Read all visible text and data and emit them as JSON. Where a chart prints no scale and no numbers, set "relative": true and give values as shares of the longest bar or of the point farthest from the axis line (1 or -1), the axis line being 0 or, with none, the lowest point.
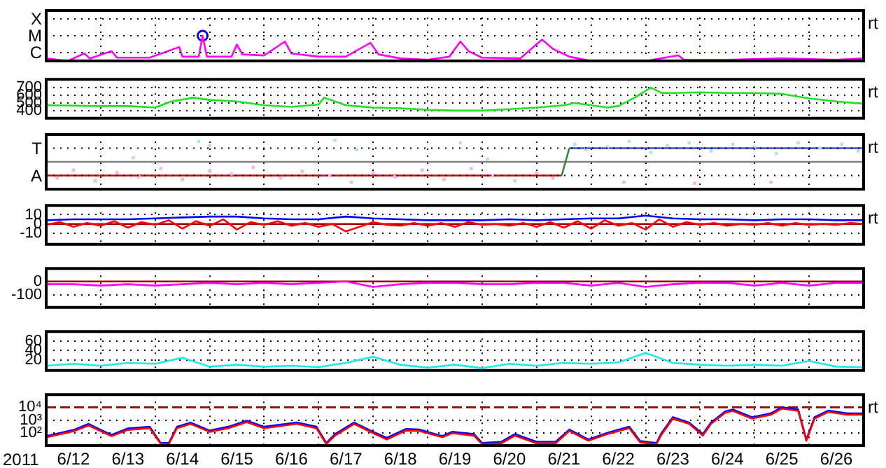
{
  "chart_data": [
    {
      "type": "line",
      "relative": true,
      "grid": true,
      "marker": "none",
      "tick_labels": "y",
      "annotations": [
        "rt",
        "X",
        "M",
        "C"
      ],
      "xlim": [
        "2011-06-12T00:00",
        "2011-06-27T00:00"
      ],
      "xticks": [
        {
          "value": "2011-06-13T00:00",
          "label": null
        },
        {
          "value": "2011-06-14T00:00",
          "label": null
        },
        {
          "value": "2011-06-15T00:00",
          "label": null
        },
        {
          "value": "2011-06-16T00:00",
          "label": null
        },
        {
          "value": "2011-06-17T00:00",
          "label": null
        },
        {
          "value": "2011-06-18T00:00",
          "label": null
        },
        {
          "value": "2011-06-19T00:00",
          "label": null
        },
        {
          "value": "2011-06-20T00:00",
          "label": null
        },
        {
          "value": "2011-06-21T00:00",
          "label": null
        },
        {
          "value": "2011-06-22T00:00",
          "label": null
        },
        {
          "value": "2011-06-23T00:00",
          "label": null
        },
        {
          "value": "2011-06-24T00:00",
          "label": null
        },
        {
          "value": "2011-06-25T00:00",
          "label": null
        },
        {
          "value": "2011-06-26T00:00",
          "label": null
        }
      ],
      "series": [
        {
          "color": "#ff00ff",
          "x": [
            "2011-06-12T00:00",
            "2011-06-12T09:36",
            "2011-06-12T16:48",
            "2011-06-12T19:12",
            "2011-06-13T04:48",
            "2011-06-13T07:12",
            "2011-06-13T21:36",
            "2011-06-14T10:34",
            "2011-06-14T12:00",
            "2011-06-14T19:12",
            "2011-06-14T20:53",
            "2011-06-14T22:48",
            "2011-06-15T09:36",
            "2011-06-15T12:00",
            "2011-06-15T14:24",
            "2011-06-16T00:00",
            "2011-06-16T09:07",
            "2011-06-16T12:00",
            "2011-06-17T00:00",
            "2011-06-17T12:00",
            "2011-06-17T22:48",
            "2011-06-18T02:24",
            "2011-06-18T12:00",
            "2011-06-19T00:00",
            "2011-06-19T09:36",
            "2011-06-19T14:24",
            "2011-06-19T18:00",
            "2011-06-20T00:00",
            "2011-06-20T16:48",
            "2011-06-21T02:24",
            "2011-06-21T07:12",
            "2011-06-21T14:24",
            "2011-06-22T00:00",
            "2011-06-23T00:00",
            "2011-06-23T14:24",
            "2011-06-23T16:48",
            "2011-06-24T12:00",
            "2011-06-25T12:00",
            "2011-06-26T12:00",
            "2011-06-27T00:00"
          ],
          "values": [
            0.1,
            0,
            0.3,
            0.1,
            0.39,
            0.13,
            0.13,
            0.55,
            0.17,
            0.17,
            1,
            0.17,
            0.17,
            0.65,
            0.26,
            0.22,
            0.77,
            0.3,
            0.17,
            0.17,
            0.72,
            0.26,
            0.1,
            0.05,
            0.17,
            0.77,
            0.39,
            0.13,
            0.1,
            0.85,
            0.48,
            0.17,
            0,
            0,
            0.22,
            0.05,
            0.05,
            0.1,
            0.05,
            0.1
          ]
        },
        {
          "type": "scatter",
          "marker": "circle",
          "color": "#0000ff",
          "x": [
            "2011-06-14T20:53"
          ],
          "values": [
            1
          ]
        }
      ]
    },
    {
      "type": "line",
      "grid": true,
      "marker": "none",
      "tick_labels": "y",
      "annotations": [
        "rt"
      ],
      "xlim": [
        "2011-06-12T00:00",
        "2011-06-27T00:00"
      ],
      "ylim": [
        300,
        810
      ],
      "yticks": [
        400,
        500,
        600,
        700
      ],
      "xticks": [
        {
          "value": "2011-06-13T00:00",
          "label": null
        },
        {
          "value": "2011-06-14T00:00",
          "label": null
        },
        {
          "value": "2011-06-15T00:00",
          "label": null
        },
        {
          "value": "2011-06-16T00:00",
          "label": null
        },
        {
          "value": "2011-06-17T00:00",
          "label": null
        },
        {
          "value": "2011-06-18T00:00",
          "label": null
        },
        {
          "value": "2011-06-19T00:00",
          "label": null
        },
        {
          "value": "2011-06-20T00:00",
          "label": null
        },
        {
          "value": "2011-06-21T00:00",
          "label": null
        },
        {
          "value": "2011-06-22T00:00",
          "label": null
        },
        {
          "value": "2011-06-23T00:00",
          "label": null
        },
        {
          "value": "2011-06-24T00:00",
          "label": null
        },
        {
          "value": "2011-06-25T00:00",
          "label": null
        },
        {
          "value": "2011-06-26T00:00",
          "label": null
        }
      ],
      "series": [
        {
          "color": "#22e022",
          "x": [
            "2011-06-12T00:00",
            "2011-06-13T00:00",
            "2011-06-13T12:00",
            "2011-06-14T00:00",
            "2011-06-14T07:12",
            "2011-06-14T16:48",
            "2011-06-15T00:00",
            "2011-06-15T12:00",
            "2011-06-16T00:00",
            "2011-06-16T12:00",
            "2011-06-17T00:00",
            "2011-06-17T02:24",
            "2011-06-17T07:12",
            "2011-06-17T12:00",
            "2011-06-18T00:00",
            "2011-06-18T12:00",
            "2011-06-19T00:00",
            "2011-06-19T12:00",
            "2011-06-20T00:00",
            "2011-06-20T12:00",
            "2011-06-21T00:00",
            "2011-06-21T12:00",
            "2011-06-21T16:48",
            "2011-06-22T00:00",
            "2011-06-22T07:12",
            "2011-06-22T12:00",
            "2011-06-22T19:12",
            "2011-06-23T00:00",
            "2011-06-23T02:24",
            "2011-06-23T07:12",
            "2011-06-23T12:00",
            "2011-06-24T00:00",
            "2011-06-24T12:00",
            "2011-06-25T00:00",
            "2011-06-25T12:00",
            "2011-06-26T00:00",
            "2011-06-26T12:00",
            "2011-06-27T00:00"
          ],
          "values": [
            470,
            460,
            460,
            440,
            520,
            570,
            540,
            520,
            470,
            450,
            480,
            570,
            520,
            470,
            440,
            430,
            410,
            400,
            400,
            420,
            440,
            470,
            500,
            470,
            440,
            460,
            570,
            660,
            700,
            630,
            630,
            640,
            630,
            630,
            620,
            560,
            520,
            490
          ]
        }
      ]
    },
    {
      "type": "scatter",
      "relative": true,
      "grid": true,
      "marker": "square",
      "tick_labels": "y",
      "annotations": [
        "rt",
        "T",
        "A"
      ],
      "xlim": [
        "2011-06-12T00:00",
        "2011-06-27T00:00"
      ],
      "ref_lines": [
        {
          "axis": "y",
          "value": 0,
          "color": "#808080"
        }
      ],
      "xticks": [
        {
          "value": "2011-06-13T00:00",
          "label": null
        },
        {
          "value": "2011-06-14T00:00",
          "label": null
        },
        {
          "value": "2011-06-15T00:00",
          "label": null
        },
        {
          "value": "2011-06-16T00:00",
          "label": null
        },
        {
          "value": "2011-06-17T00:00",
          "label": null
        },
        {
          "value": "2011-06-18T00:00",
          "label": null
        },
        {
          "value": "2011-06-19T00:00",
          "label": null
        },
        {
          "value": "2011-06-20T00:00",
          "label": null
        },
        {
          "value": "2011-06-21T00:00",
          "label": null
        },
        {
          "value": "2011-06-22T00:00",
          "label": null
        },
        {
          "value": "2011-06-23T00:00",
          "label": null
        },
        {
          "value": "2011-06-24T00:00",
          "label": null
        },
        {
          "value": "2011-06-25T00:00",
          "label": null
        },
        {
          "value": "2011-06-26T00:00",
          "label": null
        }
      ],
      "series": [
        {
          "color": "#f6b4ee",
          "x": [
            "2011-06-12T04:48",
            "2011-06-12T12:00",
            "2011-06-12T21:36",
            "2011-06-13T07:12",
            "2011-06-13T16:48",
            "2011-06-14T02:24",
            "2011-06-14T12:00",
            "2011-06-15T00:00",
            "2011-06-15T09:36",
            "2011-06-15T19:12",
            "2011-06-16T07:12",
            "2011-06-16T16:48",
            "2011-06-17T04:48",
            "2011-06-17T14:24",
            "2011-06-18T00:00",
            "2011-06-18T09:36",
            "2011-06-18T21:36",
            "2011-06-19T07:12",
            "2011-06-19T19:12",
            "2011-06-20T04:48",
            "2011-06-20T14:24",
            "2011-06-21T00:00",
            "2011-06-21T07:12",
            "2011-06-22T14:24",
            "2011-06-23T21:36",
            "2011-06-25T07:12"
          ],
          "values": [
            -0.75,
            -0.38,
            -0.88,
            -0.5,
            -0.69,
            -0.31,
            -0.81,
            -0.44,
            -0.56,
            -0.25,
            -0.75,
            -0.44,
            -0.63,
            -0.94,
            -0.5,
            -0.69,
            -0.38,
            -0.81,
            -0.31,
            -0.63,
            -0.88,
            -0.5,
            -0.75,
            -0.94,
            -1,
            -0.94
          ]
        },
        {
          "color": "#b0e0f8",
          "x": [
            "2011-06-13T14:24",
            "2011-06-14T19:12",
            "2011-06-15T00:00",
            "2011-06-17T07:12",
            "2011-06-17T16:48",
            "2011-06-19T14:24",
            "2011-06-20T02:24",
            "2011-06-21T16:48",
            "2011-06-21T21:36",
            "2011-06-22T07:12",
            "2011-06-22T16:48",
            "2011-06-23T02:24",
            "2011-06-23T09:36",
            "2011-06-23T19:12",
            "2011-06-24T04:48",
            "2011-06-24T14:24",
            "2011-06-25T00:00",
            "2011-06-25T09:36",
            "2011-06-25T19:12",
            "2011-06-26T04:48",
            "2011-06-26T14:24",
            "2011-06-26T21:36"
          ],
          "values": [
            0.19,
            0.94,
            0.75,
            1,
            0.56,
            0.88,
            0.13,
            0.81,
            0.56,
            0.69,
            0.94,
            0.44,
            0.75,
            0.88,
            0.5,
            0.81,
            0.69,
            0.38,
            0.88,
            0.63,
            0.81,
            0.5
          ]
        },
        {
          "type": "line",
          "marker": "none",
          "color": "#cc0000",
          "x": [
            "2011-06-12T00:00",
            "2011-06-21T11:02"
          ],
          "values": [
            -0.63,
            -0.63
          ]
        },
        {
          "type": "line",
          "marker": "none",
          "color": "#408040",
          "x": [
            "2011-06-21T11:02",
            "2011-06-21T14:24"
          ],
          "values": [
            -0.63,
            0.63
          ]
        },
        {
          "type": "line",
          "marker": "none",
          "color": "#3050d0",
          "x": [
            "2011-06-21T14:24",
            "2011-06-27T00:00"
          ],
          "values": [
            0.63,
            0.63
          ]
        }
      ]
    },
    {
      "type": "line",
      "grid": true,
      "marker": "none",
      "tick_labels": "y",
      "annotations": [
        "rt"
      ],
      "xlim": [
        "2011-06-12T00:00",
        "2011-06-27T00:00"
      ],
      "ylim": [
        -22,
        20
      ],
      "yticks": [
        -10,
        0,
        10
      ],
      "ref_lines": [
        {
          "axis": "y",
          "value": 0,
          "color": "#990000"
        }
      ],
      "xticks": [
        {
          "value": "2011-06-13T00:00",
          "label": null
        },
        {
          "value": "2011-06-14T00:00",
          "label": null
        },
        {
          "value": "2011-06-15T00:00",
          "label": null
        },
        {
          "value": "2011-06-16T00:00",
          "label": null
        },
        {
          "value": "2011-06-17T00:00",
          "label": null
        },
        {
          "value": "2011-06-18T00:00",
          "label": null
        },
        {
          "value": "2011-06-19T00:00",
          "label": null
        },
        {
          "value": "2011-06-20T00:00",
          "label": null
        },
        {
          "value": "2011-06-21T00:00",
          "label": null
        },
        {
          "value": "2011-06-22T00:00",
          "label": null
        },
        {
          "value": "2011-06-23T00:00",
          "label": null
        },
        {
          "value": "2011-06-24T00:00",
          "label": null
        },
        {
          "value": "2011-06-25T00:00",
          "label": null
        },
        {
          "value": "2011-06-26T00:00",
          "label": null
        }
      ],
      "series": [
        {
          "color": "#ff0000",
          "x": [
            "2011-06-12T00:00",
            "2011-06-12T06:00",
            "2011-06-12T12:00",
            "2011-06-12T18:00",
            "2011-06-13T00:00",
            "2011-06-13T06:00",
            "2011-06-13T12:00",
            "2011-06-13T18:00",
            "2011-06-14T00:00",
            "2011-06-14T06:00",
            "2011-06-14T12:00",
            "2011-06-14T18:00",
            "2011-06-15T00:00",
            "2011-06-15T06:00",
            "2011-06-15T12:00",
            "2011-06-15T18:00",
            "2011-06-16T00:00",
            "2011-06-16T06:00",
            "2011-06-16T12:00",
            "2011-06-16T18:00",
            "2011-06-17T00:00",
            "2011-06-17T06:00",
            "2011-06-17T12:00",
            "2011-06-17T18:00",
            "2011-06-18T00:00",
            "2011-06-18T06:00",
            "2011-06-18T12:00",
            "2011-06-18T18:00",
            "2011-06-19T00:00",
            "2011-06-19T06:00",
            "2011-06-19T12:00",
            "2011-06-19T18:00",
            "2011-06-20T00:00",
            "2011-06-20T06:00",
            "2011-06-20T12:00",
            "2011-06-20T18:00",
            "2011-06-21T00:00",
            "2011-06-21T06:00",
            "2011-06-21T12:00",
            "2011-06-21T18:00",
            "2011-06-22T00:00",
            "2011-06-22T06:00",
            "2011-06-22T12:00",
            "2011-06-22T18:00",
            "2011-06-23T00:00",
            "2011-06-23T06:00",
            "2011-06-23T12:00",
            "2011-06-23T18:00",
            "2011-06-24T00:00",
            "2011-06-24T06:00",
            "2011-06-24T12:00",
            "2011-06-24T18:00",
            "2011-06-25T00:00",
            "2011-06-25T06:00",
            "2011-06-25T12:00",
            "2011-06-25T18:00",
            "2011-06-26T00:00",
            "2011-06-26T06:00",
            "2011-06-26T12:00",
            "2011-06-26T18:00",
            "2011-06-27T00:00"
          ],
          "values": [
            -1,
            2,
            -3,
            1,
            -2,
            3,
            -4,
            2,
            -1,
            4,
            -5,
            3,
            -2,
            5,
            -6,
            2,
            -1,
            3,
            -2,
            1,
            -3,
            0,
            -8,
            -3,
            2,
            -1,
            -2,
            1,
            -2,
            1,
            -3,
            2,
            -1,
            0,
            -2,
            1,
            -3,
            2,
            -4,
            3,
            -5,
            4,
            -2,
            1,
            -6,
            5,
            -3,
            2,
            -1,
            1,
            -2,
            0,
            -1,
            1,
            -2,
            1,
            -1,
            0,
            -1,
            1,
            0
          ]
        },
        {
          "color": "#0000ff",
          "x": [
            "2011-06-12T00:00",
            "2011-06-12T12:00",
            "2011-06-13T00:00",
            "2011-06-13T12:00",
            "2011-06-14T00:00",
            "2011-06-14T12:00",
            "2011-06-15T00:00",
            "2011-06-15T12:00",
            "2011-06-16T00:00",
            "2011-06-16T12:00",
            "2011-06-17T00:00",
            "2011-06-17T12:00",
            "2011-06-18T00:00",
            "2011-06-18T12:00",
            "2011-06-19T00:00",
            "2011-06-19T12:00",
            "2011-06-20T00:00",
            "2011-06-20T12:00",
            "2011-06-21T00:00",
            "2011-06-21T12:00",
            "2011-06-22T00:00",
            "2011-06-22T12:00",
            "2011-06-23T00:00",
            "2011-06-23T12:00",
            "2011-06-24T00:00",
            "2011-06-24T12:00",
            "2011-06-25T00:00",
            "2011-06-25T12:00",
            "2011-06-26T00:00",
            "2011-06-26T12:00",
            "2011-06-27T00:00"
          ],
          "values": [
            4,
            5,
            5,
            5,
            6,
            7,
            8,
            8,
            6,
            5,
            5,
            8,
            6,
            5,
            4,
            4,
            4,
            5,
            4,
            5,
            6,
            6,
            9,
            6,
            5,
            5,
            4,
            5,
            5,
            4,
            4
          ]
        }
      ]
    },
    {
      "type": "line",
      "grid": true,
      "marker": "none",
      "tick_labels": "y",
      "xlim": [
        "2011-06-12T00:00",
        "2011-06-27T00:00"
      ],
      "ylim": [
        -190,
        95
      ],
      "yticks": [
        -100,
        0
      ],
      "ref_lines": [
        {
          "axis": "y",
          "value": 0,
          "color": "#990000"
        }
      ],
      "xticks": [
        {
          "value": "2011-06-13T00:00",
          "label": null
        },
        {
          "value": "2011-06-14T00:00",
          "label": null
        },
        {
          "value": "2011-06-15T00:00",
          "label": null
        },
        {
          "value": "2011-06-16T00:00",
          "label": null
        },
        {
          "value": "2011-06-17T00:00",
          "label": null
        },
        {
          "value": "2011-06-18T00:00",
          "label": null
        },
        {
          "value": "2011-06-19T00:00",
          "label": null
        },
        {
          "value": "2011-06-20T00:00",
          "label": null
        },
        {
          "value": "2011-06-21T00:00",
          "label": null
        },
        {
          "value": "2011-06-22T00:00",
          "label": null
        },
        {
          "value": "2011-06-23T00:00",
          "label": null
        },
        {
          "value": "2011-06-24T00:00",
          "label": null
        },
        {
          "value": "2011-06-25T00:00",
          "label": null
        },
        {
          "value": "2011-06-26T00:00",
          "label": null
        }
      ],
      "series": [
        {
          "color": "#ff00ff",
          "x": [
            "2011-06-12T00:00",
            "2011-06-12T12:00",
            "2011-06-13T00:00",
            "2011-06-13T12:00",
            "2011-06-14T00:00",
            "2011-06-14T12:00",
            "2011-06-15T00:00",
            "2011-06-15T12:00",
            "2011-06-16T00:00",
            "2011-06-16T12:00",
            "2011-06-17T00:00",
            "2011-06-17T12:00",
            "2011-06-18T00:00",
            "2011-06-18T12:00",
            "2011-06-19T00:00",
            "2011-06-19T12:00",
            "2011-06-20T00:00",
            "2011-06-20T12:00",
            "2011-06-21T00:00",
            "2011-06-21T12:00",
            "2011-06-22T00:00",
            "2011-06-22T12:00",
            "2011-06-23T00:00",
            "2011-06-23T12:00",
            "2011-06-24T00:00",
            "2011-06-24T12:00",
            "2011-06-25T00:00",
            "2011-06-25T12:00",
            "2011-06-26T00:00",
            "2011-06-26T12:00",
            "2011-06-27T00:00"
          ],
          "values": [
            -20,
            -20,
            -30,
            -20,
            -30,
            -20,
            -10,
            -20,
            -10,
            -20,
            -10,
            0,
            -40,
            -20,
            -10,
            -10,
            -20,
            -20,
            -10,
            -10,
            -30,
            -10,
            -40,
            -20,
            -10,
            -10,
            -30,
            -10,
            -30,
            -10,
            -10
          ]
        }
      ]
    },
    {
      "type": "line",
      "grid": true,
      "marker": "none",
      "tick_labels": "y",
      "xlim": [
        "2011-06-12T00:00",
        "2011-06-27T00:00"
      ],
      "ylim": [
        -2,
        80
      ],
      "yticks": [
        20,
        40,
        60
      ],
      "xticks": [
        {
          "value": "2011-06-13T00:00",
          "label": null
        },
        {
          "value": "2011-06-14T00:00",
          "label": null
        },
        {
          "value": "2011-06-15T00:00",
          "label": null
        },
        {
          "value": "2011-06-16T00:00",
          "label": null
        },
        {
          "value": "2011-06-17T00:00",
          "label": null
        },
        {
          "value": "2011-06-18T00:00",
          "label": null
        },
        {
          "value": "2011-06-19T00:00",
          "label": null
        },
        {
          "value": "2011-06-20T00:00",
          "label": null
        },
        {
          "value": "2011-06-21T00:00",
          "label": null
        },
        {
          "value": "2011-06-22T00:00",
          "label": null
        },
        {
          "value": "2011-06-23T00:00",
          "label": null
        },
        {
          "value": "2011-06-24T00:00",
          "label": null
        },
        {
          "value": "2011-06-25T00:00",
          "label": null
        },
        {
          "value": "2011-06-26T00:00",
          "label": null
        }
      ],
      "series": [
        {
          "color": "#20e8e8",
          "x": [
            "2011-06-12T00:00",
            "2011-06-12T12:00",
            "2011-06-13T00:00",
            "2011-06-13T12:00",
            "2011-06-14T00:00",
            "2011-06-14T12:00",
            "2011-06-15T00:00",
            "2011-06-15T12:00",
            "2011-06-16T00:00",
            "2011-06-16T12:00",
            "2011-06-17T00:00",
            "2011-06-17T12:00",
            "2011-06-18T00:00",
            "2011-06-18T12:00",
            "2011-06-19T00:00",
            "2011-06-19T12:00",
            "2011-06-20T00:00",
            "2011-06-20T12:00",
            "2011-06-21T00:00",
            "2011-06-21T12:00",
            "2011-06-22T00:00",
            "2011-06-22T12:00",
            "2011-06-23T00:00",
            "2011-06-23T12:00",
            "2011-06-24T00:00",
            "2011-06-24T12:00",
            "2011-06-25T00:00",
            "2011-06-25T12:00",
            "2011-06-26T00:00",
            "2011-06-26T12:00",
            "2011-06-27T00:00"
          ],
          "values": [
            8,
            12,
            8,
            14,
            12,
            25,
            6,
            10,
            6,
            8,
            5,
            14,
            27,
            10,
            4,
            10,
            3,
            12,
            8,
            14,
            12,
            15,
            35,
            14,
            10,
            8,
            10,
            8,
            18,
            6,
            5
          ]
        }
      ]
    },
    {
      "type": "line",
      "log": "y",
      "grid": true,
      "marker": "none",
      "xlabel": "2011",
      "annotations": [
        "rt"
      ],
      "xlim": [
        "2011-06-12T00:00",
        "2011-06-27T00:00"
      ],
      "ylim": [
        10,
        100000
      ],
      "yticks": [
        {
          "value": 100,
          "label": "10²"
        },
        {
          "value": 1000,
          "label": "10³"
        },
        {
          "value": 10000,
          "label": "10⁴"
        }
      ],
      "ref_lines": [
        {
          "axis": "y",
          "value": 10000,
          "color": "#990000",
          "line_style": "dashed"
        }
      ],
      "xticks": [
        {
          "value": "2011-06-12T12:00",
          "label": "6/12"
        },
        {
          "value": "2011-06-13T00:00",
          "label": null
        },
        {
          "value": "2011-06-13T12:00",
          "label": "6/13"
        },
        {
          "value": "2011-06-14T00:00",
          "label": null
        },
        {
          "value": "2011-06-14T12:00",
          "label": "6/14"
        },
        {
          "value": "2011-06-15T00:00",
          "label": null
        },
        {
          "value": "2011-06-15T12:00",
          "label": "6/15"
        },
        {
          "value": "2011-06-16T00:00",
          "label": null
        },
        {
          "value": "2011-06-16T12:00",
          "label": "6/16"
        },
        {
          "value": "2011-06-17T00:00",
          "label": null
        },
        {
          "value": "2011-06-17T12:00",
          "label": "6/17"
        },
        {
          "value": "2011-06-18T00:00",
          "label": null
        },
        {
          "value": "2011-06-18T12:00",
          "label": "6/18"
        },
        {
          "value": "2011-06-19T00:00",
          "label": null
        },
        {
          "value": "2011-06-19T12:00",
          "label": "6/19"
        },
        {
          "value": "2011-06-20T00:00",
          "label": null
        },
        {
          "value": "2011-06-20T12:00",
          "label": "6/20"
        },
        {
          "value": "2011-06-21T00:00",
          "label": null
        },
        {
          "value": "2011-06-21T12:00",
          "label": "6/21"
        },
        {
          "value": "2011-06-22T00:00",
          "label": null
        },
        {
          "value": "2011-06-22T12:00",
          "label": "6/22"
        },
        {
          "value": "2011-06-23T00:00",
          "label": null
        },
        {
          "value": "2011-06-23T12:00",
          "label": "6/23"
        },
        {
          "value": "2011-06-24T00:00",
          "label": null
        },
        {
          "value": "2011-06-24T12:00",
          "label": "6/24"
        },
        {
          "value": "2011-06-25T00:00",
          "label": null
        },
        {
          "value": "2011-06-25T12:00",
          "label": "6/25"
        },
        {
          "value": "2011-06-26T00:00",
          "label": null
        },
        {
          "value": "2011-06-26T12:00",
          "label": "6/26"
        }
      ],
      "x": [
        "2011-06-12T00:00",
        "2011-06-12T12:29",
        "2011-06-12T18:43",
        "2011-06-12T23:46",
        "2011-06-13T04:48",
        "2011-06-13T12:00",
        "2011-06-13T21:36",
        "2011-06-14T02:24",
        "2011-06-14T06:00",
        "2011-06-14T09:36",
        "2011-06-14T15:36",
        "2011-06-15T00:00",
        "2011-06-15T08:10",
        "2011-06-15T16:19",
        "2011-06-16T00:00",
        "2011-06-16T14:24",
        "2011-06-16T23:02",
        "2011-06-17T03:22",
        "2011-06-17T07:12",
        "2011-06-17T15:36",
        "2011-06-18T00:00",
        "2011-06-18T06:00",
        "2011-06-18T14:24",
        "2011-06-18T20:24",
        "2011-06-19T06:29",
        "2011-06-19T10:48",
        "2011-06-19T20:24",
        "2011-06-20T00:00",
        "2011-06-20T08:24",
        "2011-06-20T14:24",
        "2011-06-21T00:00",
        "2011-06-21T08:24",
        "2011-06-21T14:24",
        "2011-06-21T22:48",
        "2011-06-22T07:12",
        "2011-06-22T16:48",
        "2011-06-22T21:36",
        "2011-06-23T04:48",
        "2011-06-23T06:43",
        "2011-06-23T12:00",
        "2011-06-23T19:12",
        "2011-06-24T01:12",
        "2011-06-24T04:48",
        "2011-06-24T11:02",
        "2011-06-24T14:24",
        "2011-06-24T22:48",
        "2011-06-25T07:12",
        "2011-06-25T12:00",
        "2011-06-25T19:12",
        "2011-06-25T22:48",
        "2011-06-26T02:24",
        "2011-06-26T08:24",
        "2011-06-26T16:48",
        "2011-06-27T00:00"
      ],
      "series": [
        {
          "color": "#ff0000",
          "values": [
            45,
            140,
            380,
            140,
            55,
            170,
            230,
            14,
            13,
            230,
            500,
            120,
            230,
            700,
            230,
            500,
            230,
            13,
            60,
            500,
            95,
            30,
            150,
            140,
            45,
            95,
            60,
            13,
            15,
            60,
            15,
            15,
            140,
            24,
            80,
            230,
            18,
            13,
            60,
            1300,
            500,
            60,
            500,
            3700,
            5200,
            1300,
            2600,
            8000,
            5200,
            24,
            1300,
            4300,
            2600,
            2600
          ]
        },
        {
          "color": "#0000ff",
          "values": [
            55,
            180,
            500,
            180,
            70,
            220,
            300,
            16,
            16,
            300,
            640,
            150,
            300,
            900,
            300,
            640,
            300,
            16,
            80,
            640,
            120,
            40,
            200,
            180,
            55,
            120,
            80,
            16,
            20,
            80,
            20,
            20,
            180,
            30,
            100,
            300,
            23,
            16,
            80,
            1700,
            640,
            80,
            640,
            4800,
            6700,
            1700,
            3400,
            10000,
            6700,
            30,
            1700,
            5500,
            3400,
            3400
          ]
        }
      ]
    }
  ]
}
